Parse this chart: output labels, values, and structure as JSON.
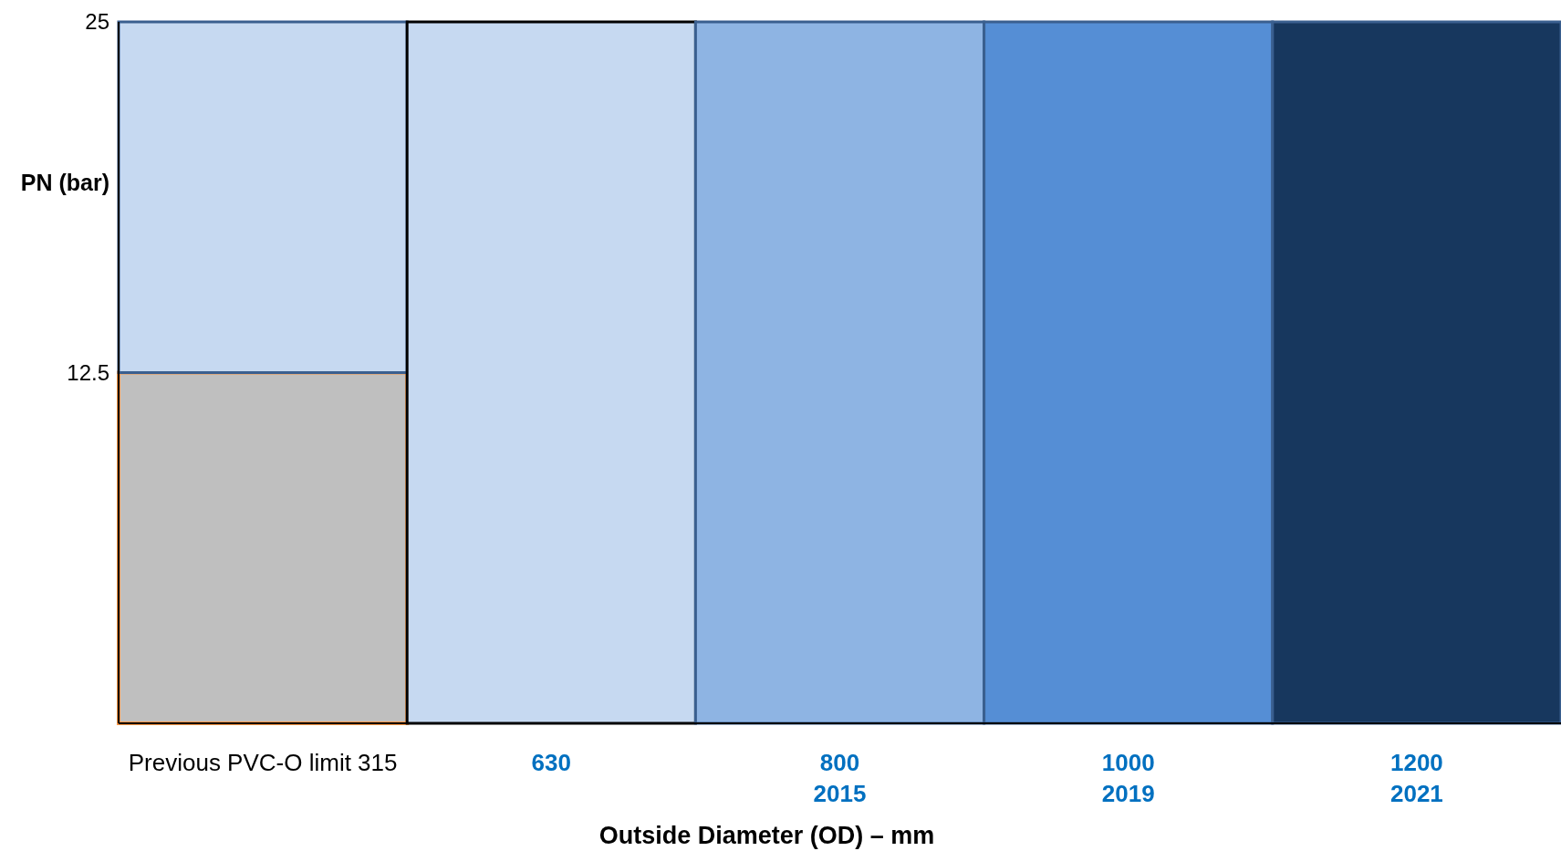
{
  "chart_data": {
    "type": "bar",
    "stacked": true,
    "xlabel": "Outside Diameter (OD) – mm",
    "ylabel": "PN (bar)",
    "categories": [
      "Previous PVC-O limit 315",
      "630",
      "800\n2015",
      "1000\n2019",
      "1200\n2021"
    ],
    "series": [
      {
        "color": "#bfbfbf",
        "values": [
          12.5,
          null,
          null,
          null,
          null
        ]
      },
      {
        "colors": [
          "#c6d9f1",
          "#c6d9f1",
          "#8eb4e3",
          "#558ed5",
          "#17375e"
        ],
        "values": [
          12.5,
          25,
          25,
          25,
          25
        ]
      }
    ],
    "ylim": [
      0,
      25
    ],
    "yticks": [
      12.5,
      25
    ]
  }
}
